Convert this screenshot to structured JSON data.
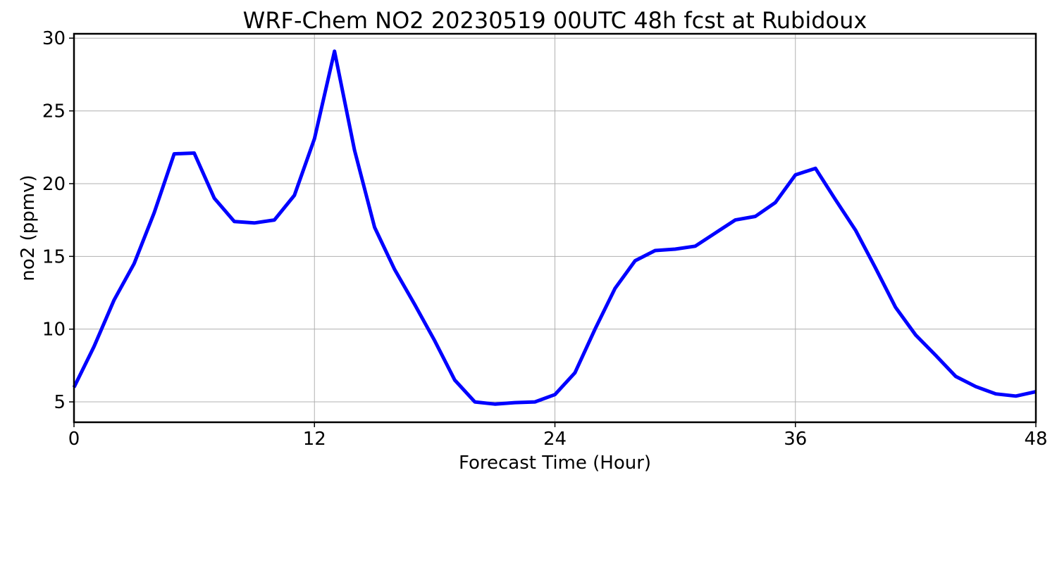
{
  "chart_data": {
    "type": "line",
    "title": "WRF-Chem NO2  20230519 00UTC 48h fcst at Rubidoux",
    "xlabel": "Forecast Time (Hour)",
    "ylabel": "no2  (ppmv)",
    "xlim": [
      0,
      48
    ],
    "ylim": [
      3.6,
      30.3
    ],
    "xticks": [
      0,
      12,
      24,
      36,
      48
    ],
    "yticks": [
      5,
      10,
      15,
      20,
      25,
      30
    ],
    "grid": true,
    "line_color": "#0000ff",
    "series": [
      {
        "x": [
          0,
          1,
          2,
          3,
          4,
          5,
          6,
          7,
          8,
          9,
          10,
          11,
          12,
          13,
          14,
          15,
          16,
          17,
          18,
          19,
          20,
          21,
          22,
          23,
          24,
          25,
          26,
          27,
          28,
          29,
          30,
          31,
          32,
          33,
          34,
          35,
          36,
          37,
          38,
          39,
          40,
          41,
          42,
          43,
          44,
          45,
          46,
          47,
          48
        ],
        "values": [
          6.0,
          8.8,
          12.0,
          14.5,
          18.0,
          22.05,
          22.1,
          19.0,
          17.4,
          17.3,
          17.5,
          19.2,
          23.1,
          29.1,
          22.3,
          17.0,
          14.1,
          11.7,
          9.2,
          6.5,
          5.0,
          4.85,
          4.95,
          5.0,
          5.5,
          7.0,
          10.0,
          12.8,
          14.7,
          15.4,
          15.5,
          15.7,
          16.6,
          17.5,
          17.75,
          18.7,
          20.6,
          21.05,
          18.9,
          16.8,
          14.2,
          11.5,
          9.6,
          8.2,
          6.75,
          6.05,
          5.55,
          5.4,
          5.7
        ]
      }
    ]
  }
}
